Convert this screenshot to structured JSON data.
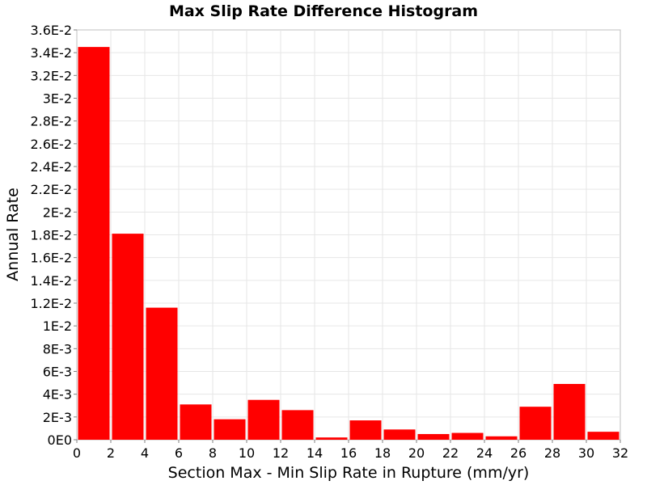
{
  "chart_data": {
    "type": "bar",
    "title": "Max Slip Rate Difference Histogram",
    "xlabel": "Section Max - Min Slip Rate in Rupture (mm/yr)",
    "ylabel": "Annual Rate",
    "xlim": [
      0,
      32
    ],
    "ylim": [
      0,
      0.036
    ],
    "grid": true,
    "bar_color": "#ff0000",
    "bin_width": 2,
    "x_ticks": [
      "0",
      "2",
      "4",
      "6",
      "8",
      "10",
      "12",
      "14",
      "16",
      "18",
      "20",
      "22",
      "24",
      "26",
      "28",
      "30",
      "32"
    ],
    "y_ticks": [
      "0E0",
      "2E-3",
      "4E-3",
      "6E-3",
      "8E-3",
      "1E-2",
      "1.2E-2",
      "1.4E-2",
      "1.6E-2",
      "1.8E-2",
      "2E-2",
      "2.2E-2",
      "2.4E-2",
      "2.6E-2",
      "2.8E-2",
      "3E-2",
      "3.2E-2",
      "3.4E-2",
      "3.6E-2"
    ],
    "series": [
      {
        "x": [
          1,
          3,
          5,
          7,
          9,
          11,
          13,
          15,
          17,
          19,
          21,
          23,
          25,
          27,
          29,
          31
        ],
        "values": [
          0.0345,
          0.0181,
          0.0116,
          0.0031,
          0.0018,
          0.0035,
          0.0026,
          0.0002,
          0.0017,
          0.0009,
          0.0005,
          0.0006,
          0.0003,
          0.0029,
          0.0049,
          0.0007
        ]
      }
    ]
  }
}
